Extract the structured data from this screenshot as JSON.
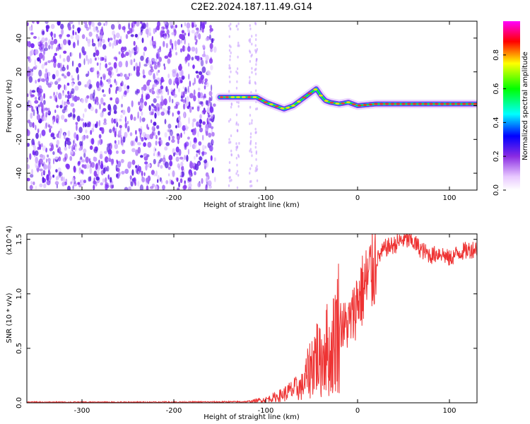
{
  "title": "C2E2.2024.187.11.49.G14",
  "chart_data": [
    {
      "type": "heatmap",
      "xlabel": "Height of straight line (km)",
      "ylabel": "Frequency (Hz)",
      "xlim": [
        -360,
        130
      ],
      "ylim": [
        -50,
        50
      ],
      "xticks": [
        -300,
        -200,
        -100,
        0,
        100
      ],
      "yticks": [
        -40,
        -20,
        0,
        20,
        40
      ],
      "colorbar": {
        "label": "Normalized spectral amplitude",
        "range": [
          0,
          1
        ],
        "ticks": [
          "0.0",
          "0.2",
          "0.4",
          "0.6",
          "0.8"
        ],
        "colormap": [
          "#ffffff",
          "#e8c8ff",
          "#8a2be2",
          "#0000ff",
          "#00ffff",
          "#00ff00",
          "#ffff00",
          "#ff0000",
          "#ff00ff"
        ]
      },
      "ridge": {
        "x": [
          -150,
          -130,
          -110,
          -100,
          -90,
          -80,
          -70,
          -60,
          -50,
          -45,
          -40,
          -35,
          -30,
          -20,
          -10,
          0,
          20,
          50,
          80,
          100,
          130
        ],
        "y": [
          5,
          5,
          5,
          2,
          0,
          -2,
          0,
          4,
          8,
          10,
          6,
          3,
          2,
          1,
          2,
          0,
          1,
          1,
          1,
          1,
          1
        ]
      },
      "noise_region_x": [
        -360,
        -155
      ]
    },
    {
      "type": "line",
      "xlabel": "Height of straight line (km)",
      "ylabel": "SNR (10 * v/v)",
      "y_multiplier": "(x10^4)",
      "xlim": [
        -360,
        130
      ],
      "ylim": [
        0,
        1.55
      ],
      "xticks": [
        -300,
        -200,
        -100,
        0,
        100
      ],
      "yticks": [
        "0.0",
        "0.5",
        "1.0",
        "1.5"
      ],
      "series": [
        {
          "color": "#ee3333",
          "x": [
            -360,
            -250,
            -150,
            -120,
            -100,
            -90,
            -80,
            -70,
            -60,
            -50,
            -45,
            -40,
            -35,
            -30,
            -25,
            -20,
            -15,
            -10,
            -5,
            0,
            10,
            20,
            30,
            40,
            50,
            60,
            70,
            80,
            90,
            100,
            110,
            120,
            130
          ],
          "y": [
            0.005,
            0.005,
            0.008,
            0.01,
            0.03,
            0.05,
            0.08,
            0.12,
            0.15,
            0.35,
            0.45,
            0.35,
            0.55,
            0.4,
            0.6,
            0.75,
            0.7,
            0.72,
            0.8,
            0.95,
            1.1,
            1.3,
            1.42,
            1.45,
            1.5,
            1.48,
            1.4,
            1.35,
            1.38,
            1.32,
            1.38,
            1.4,
            1.42
          ]
        }
      ]
    }
  ]
}
